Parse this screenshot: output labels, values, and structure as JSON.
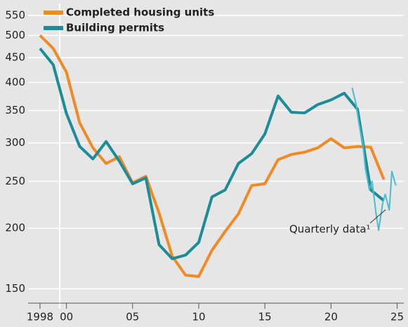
{
  "chart_data": {
    "type": "line",
    "log_y": true,
    "grid": true,
    "legend": "upper left",
    "annotation": "Quarterly data¹",
    "xlim": [
      1997.1,
      2025.5
    ],
    "ylim": [
      141,
      582
    ],
    "xticks": [
      1998,
      {
        "value": 2000,
        "label": "00"
      },
      {
        "value": 2005,
        "label": "05"
      },
      {
        "value": 2010,
        "label": "10"
      },
      {
        "value": 2015,
        "label": "15"
      },
      {
        "value": 2020,
        "label": "20"
      },
      {
        "value": 2025,
        "label": "25"
      }
    ],
    "yticks": [
      150,
      200,
      250,
      300,
      350,
      400,
      450,
      500,
      550
    ],
    "series": [
      {
        "name": "Completed housing units",
        "color": "#f08a24",
        "width": 4,
        "x": [
          1998,
          1999,
          2000,
          2001,
          2002,
          2003,
          2004,
          2005,
          2006,
          2007,
          2008,
          2009,
          2010,
          2011,
          2012,
          2013,
          2014,
          2015,
          2016,
          2017,
          2018,
          2019,
          2020,
          2021,
          2022,
          2023,
          2024
        ],
        "values": [
          500,
          470,
          420,
          330,
          293,
          272,
          281,
          248,
          256,
          215,
          175,
          160,
          159,
          180,
          197,
          214,
          245,
          247,
          277,
          284,
          287,
          293,
          306,
          293,
          295,
          294,
          252
        ]
      },
      {
        "name": "Building permits",
        "color": "#1b8c98",
        "width": 4,
        "x": [
          1998,
          1999,
          2000,
          2001,
          2002,
          2003,
          2004,
          2005,
          2006,
          2007,
          2008,
          2009,
          2010,
          2011,
          2012,
          2013,
          2014,
          2015,
          2016,
          2017,
          2018,
          2019,
          2020,
          2021,
          2022,
          2023,
          2024
        ],
        "values": [
          470,
          435,
          345,
          295,
          278,
          302,
          275,
          247,
          254,
          185,
          173,
          176,
          187,
          232,
          240,
          272,
          285,
          313,
          375,
          347,
          346,
          360,
          368,
          380,
          352,
          240,
          228
        ]
      },
      {
        "color": "#4bbccc",
        "width": 2,
        "x": [
          2021.6,
          2021.9,
          2022.1,
          2022.4,
          2022.6,
          2022.9,
          2023.1,
          2023.4,
          2023.6,
          2023.9,
          2024.1,
          2024.4,
          2024.6,
          2024.9
        ],
        "values": [
          390,
          360,
          330,
          300,
          265,
          240,
          250,
          215,
          198,
          225,
          235,
          218,
          262,
          245
        ]
      }
    ]
  }
}
